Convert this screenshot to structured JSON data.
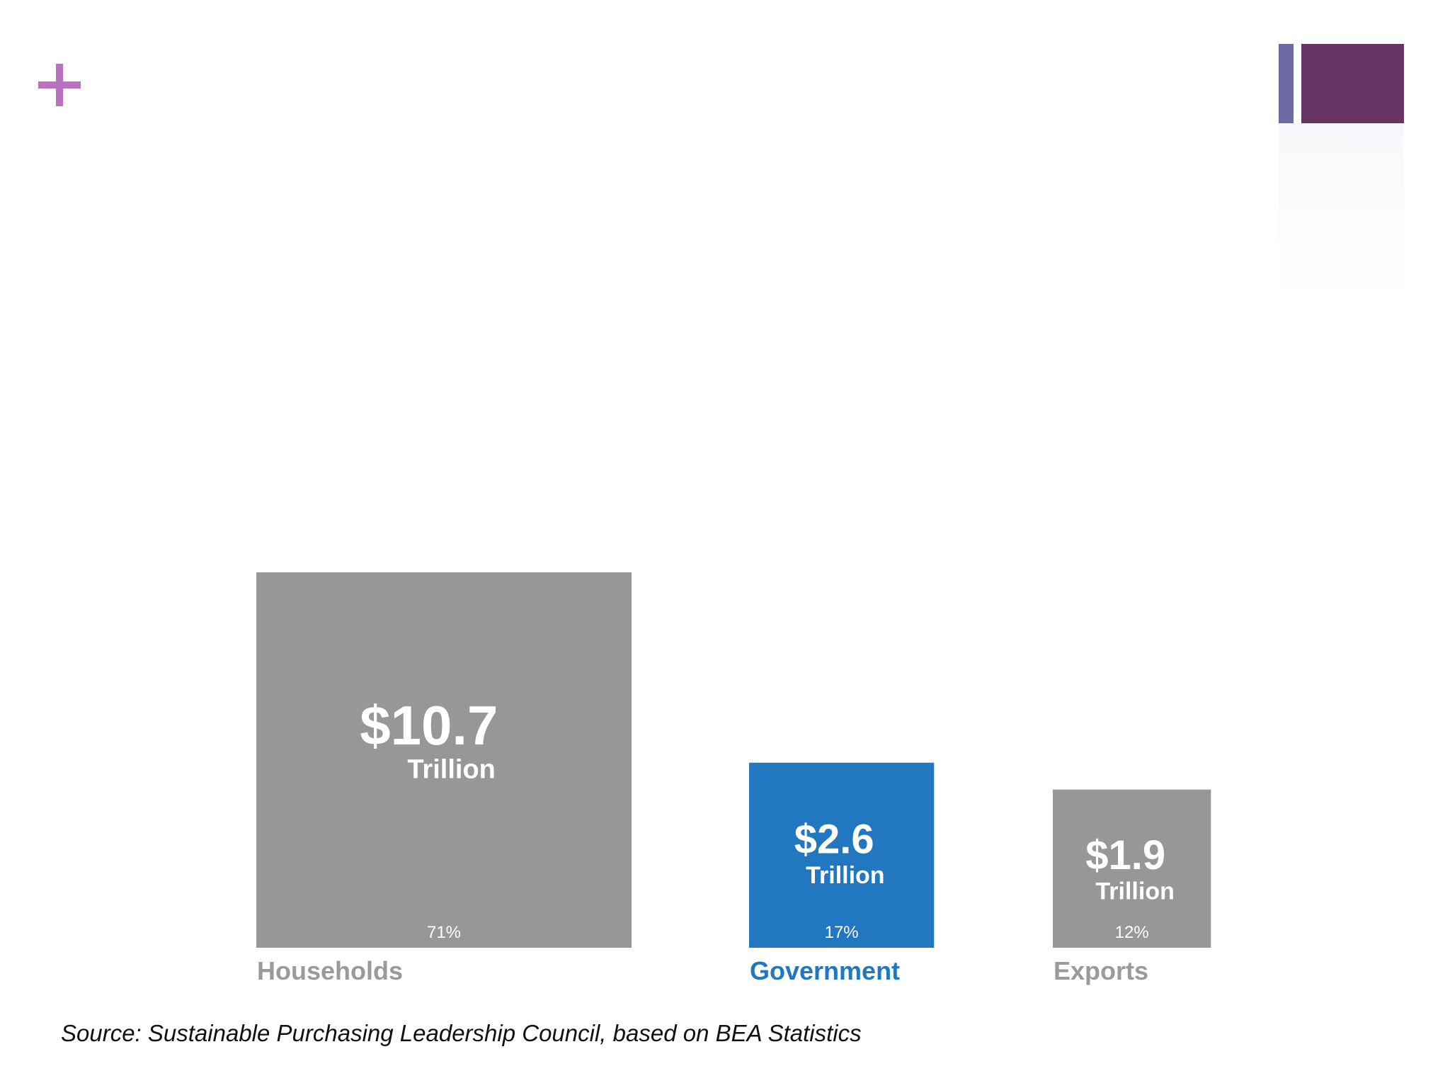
{
  "icons": {
    "corner": "plus-icon"
  },
  "chart_data": {
    "type": "bar",
    "categories": [
      "Households",
      "Government",
      "Exports"
    ],
    "values": [
      10.7,
      2.6,
      1.9
    ],
    "value_labels": [
      "$10.7",
      "$2.6",
      "$1.9"
    ],
    "unit_labels": [
      "Trillion",
      "Trillion",
      "Trillion"
    ],
    "percent_labels": [
      "71%",
      "17%",
      "12%"
    ],
    "bar_colors": [
      "#979799",
      "#2177c0",
      "#979799"
    ],
    "category_label_colors": [
      "#9a9a9c",
      "#2177c0",
      "#9a9a9c"
    ],
    "encoding": "square area proportional to value",
    "title": "",
    "xlabel": "",
    "ylabel": "",
    "grid": false,
    "legend": "none"
  },
  "source": "Source: Sustainable Purchasing Leadership Council, based on BEA Statistics",
  "colors": {
    "accent_plus": "#b872bf",
    "deco_thin": "#6f6aa3",
    "deco_thick": "#673564",
    "value_text": "#ffffff",
    "source_text": "#111111"
  }
}
